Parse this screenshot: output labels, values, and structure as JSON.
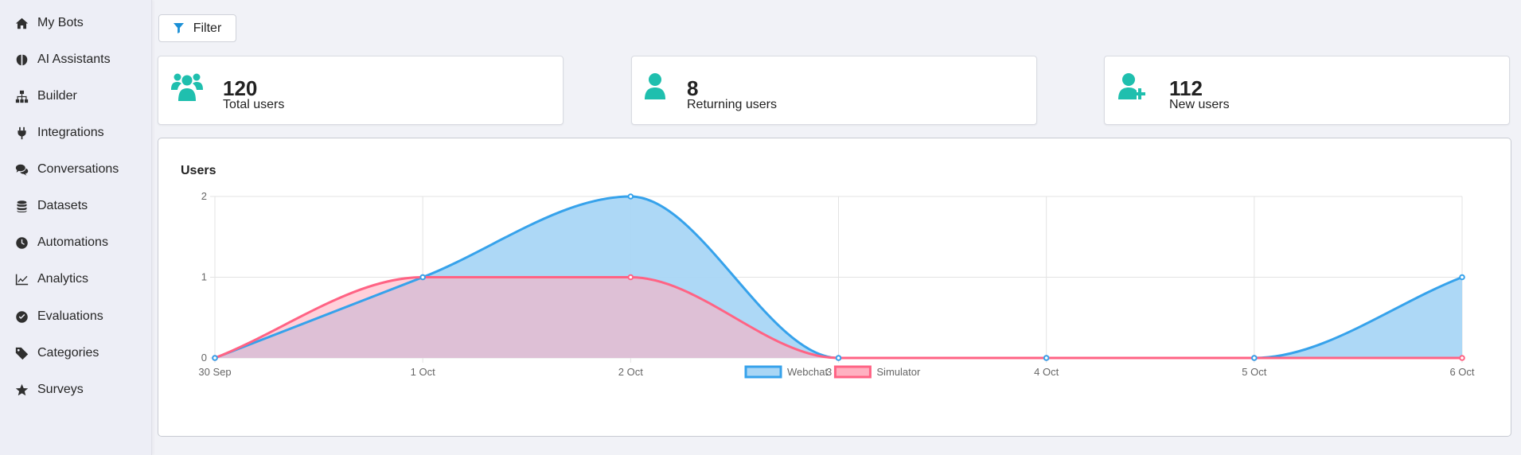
{
  "sidebar": {
    "items": [
      {
        "label": "My Bots",
        "icon": "home-icon"
      },
      {
        "label": "AI Assistants",
        "icon": "brain-icon"
      },
      {
        "label": "Builder",
        "icon": "sitemap-icon"
      },
      {
        "label": "Integrations",
        "icon": "plug-icon"
      },
      {
        "label": "Conversations",
        "icon": "comments-icon"
      },
      {
        "label": "Datasets",
        "icon": "database-icon"
      },
      {
        "label": "Automations",
        "icon": "clock-icon"
      },
      {
        "label": "Analytics",
        "icon": "chart-line-icon"
      },
      {
        "label": "Evaluations",
        "icon": "check-circle-icon"
      },
      {
        "label": "Categories",
        "icon": "tag-icon"
      },
      {
        "label": "Surveys",
        "icon": "star-icon"
      }
    ]
  },
  "toolbar": {
    "filter_label": "Filter"
  },
  "stats": [
    {
      "value": "120",
      "label": "Total users",
      "icon": "users-icon"
    },
    {
      "value": "8",
      "label": "Returning users",
      "icon": "user-icon"
    },
    {
      "value": "112",
      "label": "New users",
      "icon": "user-plus-icon"
    }
  ],
  "colors": {
    "accent": "#1fbfae",
    "webchat_line": "#36a2eb",
    "webchat_fill": "#a9d6f5",
    "simulator_line": "#ff6384",
    "simulator_fill": "#ffb1c1"
  },
  "chart": {
    "title": "Users"
  },
  "chart_data": {
    "type": "area",
    "title": "Users",
    "categories": [
      "30 Sep",
      "1 Oct",
      "2 Oct",
      "3 Oct",
      "4 Oct",
      "5 Oct",
      "6 Oct"
    ],
    "ylim": [
      0,
      2
    ],
    "yticks": [
      "0",
      "1",
      "2"
    ],
    "grid": true,
    "legend_position": "bottom",
    "series": [
      {
        "name": "Webchat",
        "values": [
          0,
          1,
          2,
          0,
          0,
          0,
          1
        ]
      },
      {
        "name": "Simulator",
        "values": [
          0,
          1,
          1,
          0,
          0,
          0,
          0
        ]
      }
    ]
  }
}
